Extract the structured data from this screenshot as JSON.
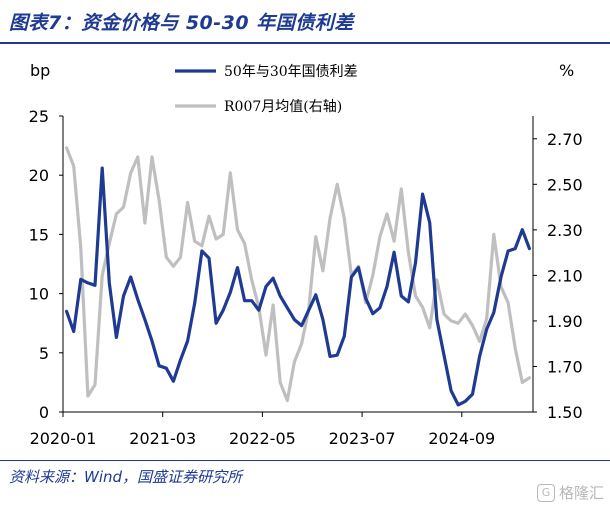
{
  "figure_title": "图表7：资金价格与 50-30 年国债利差",
  "source": "资料来源：Wind，国盛证券研究所",
  "watermark": "格隆汇",
  "colors": {
    "series1": "#1f3a93",
    "series2": "#bfbfbf",
    "title": "#1f3a93"
  },
  "chart_data": {
    "type": "line",
    "left_unit": "bp",
    "right_unit": "%",
    "x_ticks": [
      "2020-01",
      "2021-03",
      "2022-05",
      "2023-07",
      "2024-09"
    ],
    "y_left": {
      "min": 0,
      "max": 25,
      "ticks": [
        0,
        5,
        10,
        15,
        20,
        25
      ]
    },
    "y_right": {
      "min": 1.5,
      "max": 2.8,
      "ticks": [
        "1.50",
        "1.70",
        "1.90",
        "2.10",
        "2.30",
        "2.50",
        "2.70"
      ]
    },
    "legend_position": "top-center",
    "series": [
      {
        "name": "50年与30年国债利差",
        "axis": "left",
        "values": [
          8.5,
          6.8,
          11.2,
          10.9,
          10.7,
          20.6,
          10.9,
          6.3,
          9.8,
          11.4,
          9.5,
          7.8,
          6.0,
          3.9,
          3.7,
          2.6,
          4.4,
          6.0,
          9.2,
          13.6,
          13.0,
          7.5,
          8.6,
          10.1,
          12.2,
          9.4,
          9.4,
          8.6,
          10.6,
          11.3,
          9.8,
          8.8,
          7.8,
          7.3,
          8.6,
          9.9,
          7.8,
          4.7,
          4.8,
          6.4,
          11.4,
          12.2,
          9.6,
          8.3,
          8.8,
          10.6,
          13.5,
          9.8,
          9.3,
          12.6,
          18.4,
          16.0,
          7.8,
          4.8,
          1.8,
          0.6,
          0.9,
          1.5,
          4.7,
          7.0,
          8.4,
          11.4,
          13.6,
          13.8,
          15.4,
          13.8
        ]
      },
      {
        "name": "R007月均值(右轴)",
        "axis": "right",
        "values": [
          2.66,
          2.58,
          2.22,
          1.57,
          1.62,
          2.1,
          2.24,
          2.37,
          2.4,
          2.55,
          2.62,
          2.33,
          2.62,
          2.43,
          2.18,
          2.14,
          2.18,
          2.42,
          2.25,
          2.23,
          2.36,
          2.26,
          2.28,
          2.55,
          2.3,
          2.24,
          2.08,
          1.96,
          1.75,
          1.97,
          1.63,
          1.55,
          1.72,
          1.8,
          1.95,
          2.27,
          2.12,
          2.35,
          2.5,
          2.35,
          2.1,
          2.14,
          1.98,
          2.1,
          2.27,
          2.37,
          2.25,
          2.48,
          2.2,
          2.01,
          1.96,
          1.87,
          2.08,
          1.93,
          1.9,
          1.89,
          1.93,
          1.88,
          1.81,
          1.91,
          2.28,
          2.05,
          1.98,
          1.78,
          1.63,
          1.65
        ]
      }
    ]
  }
}
